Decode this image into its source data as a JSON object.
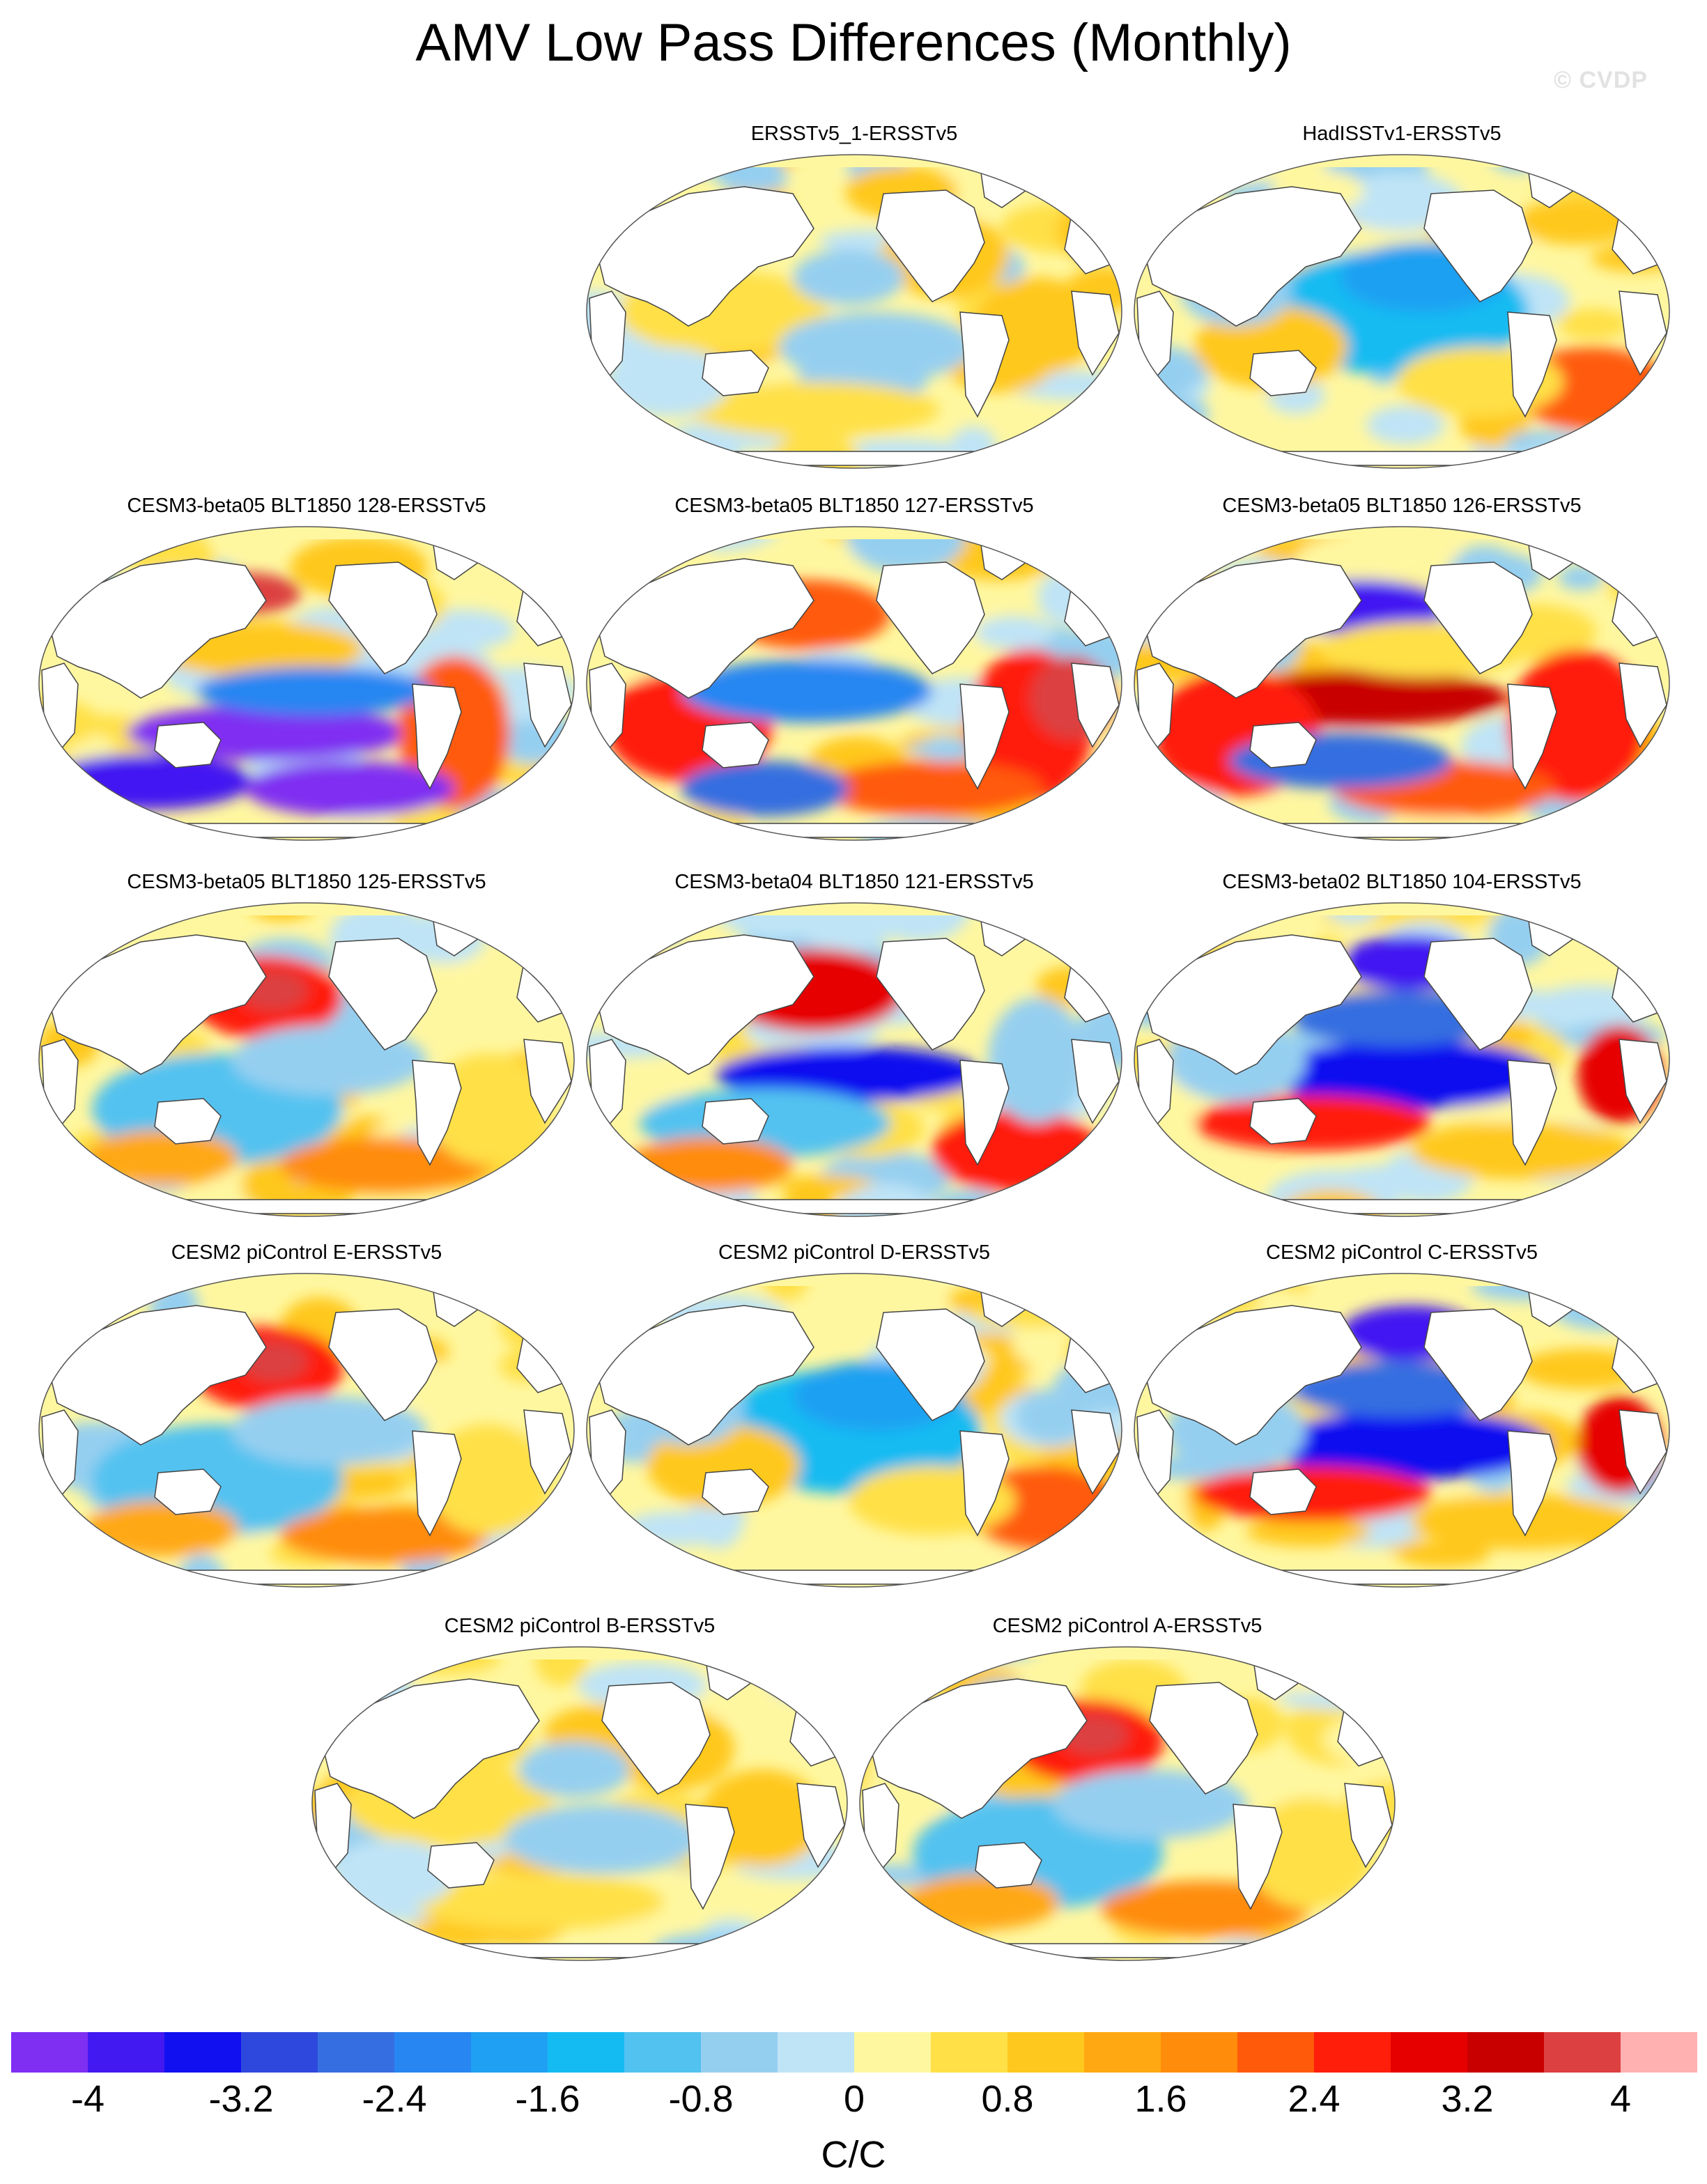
{
  "title": "AMV Low Pass Differences (Monthly)",
  "watermark": "© CVDP",
  "panels": [
    {
      "title": "ERSSTv5_1-ERSSTv5",
      "pattern": "weak-mixed"
    },
    {
      "title": "HadISSTv1-ERSSTv5",
      "pattern": "cool-pacific"
    },
    {
      "title": "CESM3-beta05 BLT1850 128-ERSSTv5",
      "pattern": "strong-cool-south"
    },
    {
      "title": "CESM3-beta05 BLT1850 127-ERSSTv5",
      "pattern": "strong-warm"
    },
    {
      "title": "CESM3-beta05 BLT1850 126-ERSSTv5",
      "pattern": "strong-warm-band"
    },
    {
      "title": "CESM3-beta05 BLT1850 125-ERSSTv5",
      "pattern": "warm-north-pacific"
    },
    {
      "title": "CESM3-beta04 BLT1850 121-ERSSTv5",
      "pattern": "warm-north-cool-equator"
    },
    {
      "title": "CESM3-beta02 BLT1850 104-ERSSTv5",
      "pattern": "cool-tropics"
    },
    {
      "title": "CESM2 piControl E-ERSSTv5",
      "pattern": "warm-north-pacific"
    },
    {
      "title": "CESM2 piControl D-ERSSTv5",
      "pattern": "cool-pacific"
    },
    {
      "title": "CESM2 piControl C-ERSSTv5",
      "pattern": "cool-tropics"
    },
    {
      "title": "CESM2 piControl B-ERSSTv5",
      "pattern": "weak-mixed"
    },
    {
      "title": "CESM2 piControl A-ERSSTv5",
      "pattern": "warm-north-pacific"
    }
  ],
  "colorbar": {
    "colors": [
      "#7f2ff2",
      "#4319f2",
      "#1010f0",
      "#2e48de",
      "#356ee0",
      "#2886f2",
      "#1fa0f2",
      "#14bbf2",
      "#52c2f0",
      "#95cff0",
      "#bfe4f6",
      "#fff7a0",
      "#ffe046",
      "#ffc81e",
      "#ffa812",
      "#ff8c0a",
      "#ff5a0a",
      "#ff1e0a",
      "#e60000",
      "#c80000",
      "#dc4040",
      "#ffb0b0"
    ],
    "labels": [
      "-4",
      "-3.2",
      "-2.4",
      "-1.6",
      "-0.8",
      "0",
      "0.8",
      "1.6",
      "2.4",
      "3.2",
      "4"
    ],
    "units": "C/C"
  }
}
